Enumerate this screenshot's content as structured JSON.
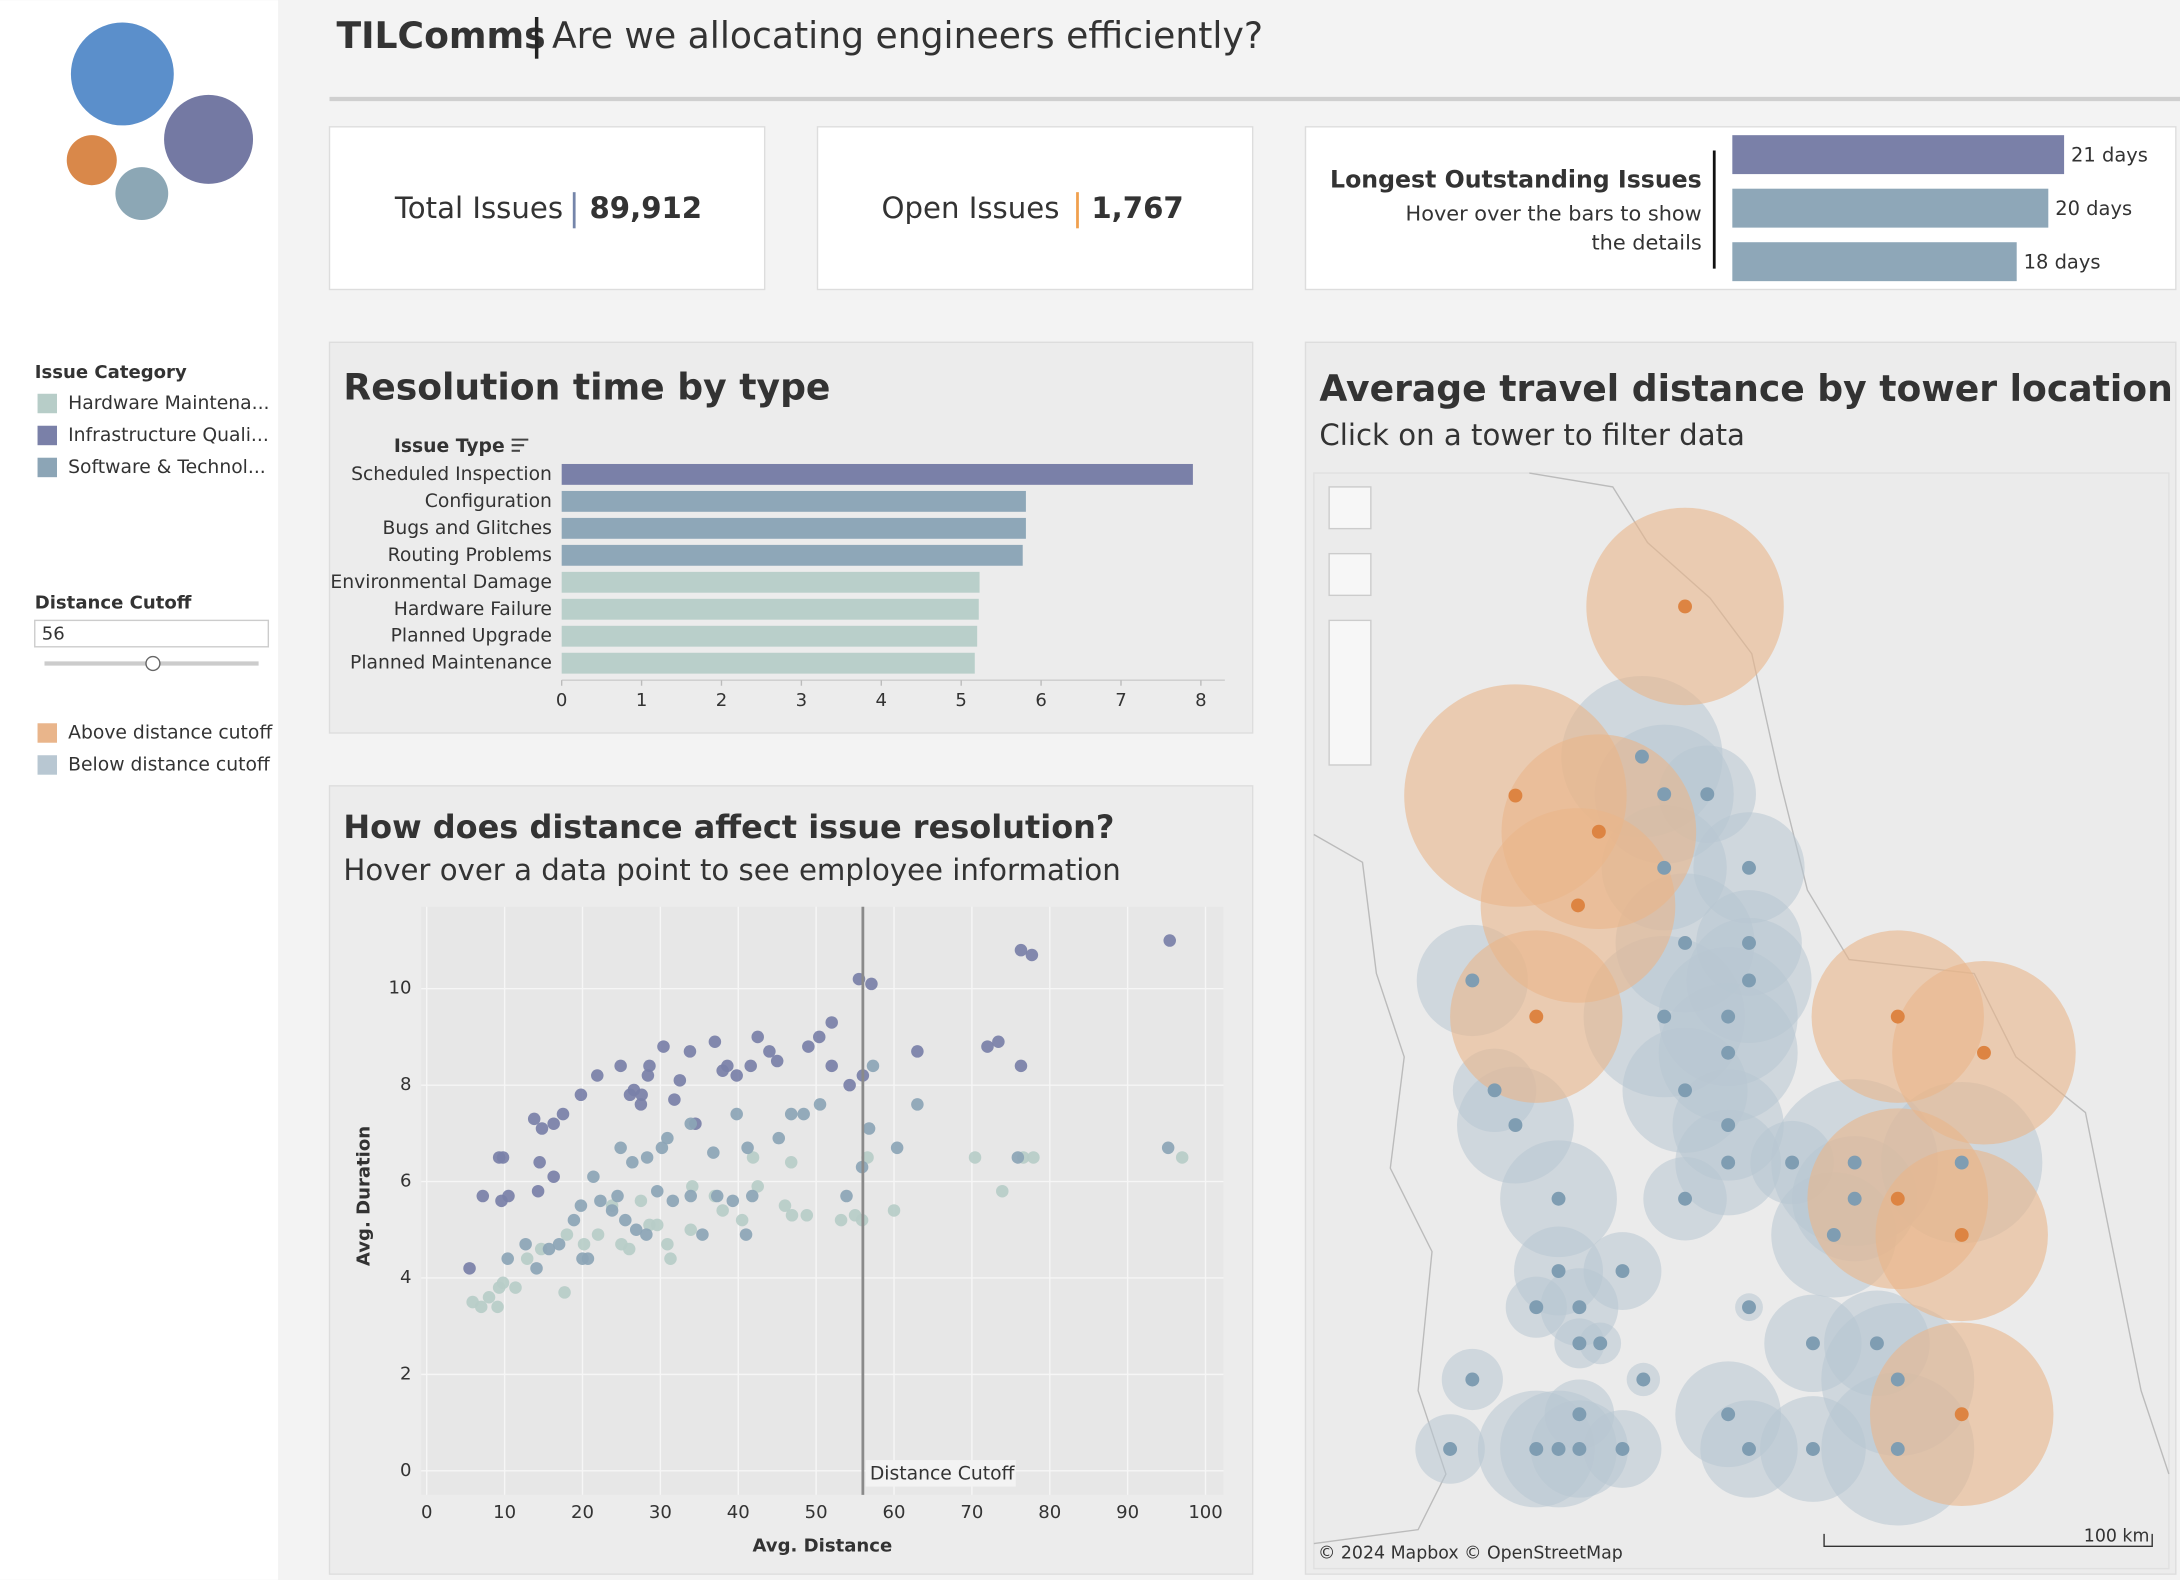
{
  "header": {
    "brand": "TILComms",
    "title": "Are we allocating engineers efficiently?"
  },
  "sidebar": {
    "category_title": "Issue Category",
    "cutoff_label": "Distance Cutoff",
    "cutoff_legend": [
      {
        "name": "Above distance cutoff",
        "color": "#e9b58b"
      },
      {
        "name": "Below distance cutoff",
        "color": "#b8c7d2"
      }
    ]
  },
  "kpis": [
    {
      "label": "Total Issues",
      "value": "89,912",
      "color": "#7585aa"
    },
    {
      "label": "Open Issues",
      "value": "1,767",
      "color": "#f0a04e"
    }
  ],
  "chart_data": [
    {
      "type": "hbar",
      "title": "Longest Outstanding Issues",
      "subtitle": "Hover over the bars to show the details",
      "values": [
        21,
        20,
        18
      ],
      "value_labels": [
        "21 days",
        "20 days",
        "18 days"
      ],
      "colors": [
        "#7a80a8",
        "#8ea7b8",
        "#8ea7b8"
      ],
      "xlim": [
        0,
        22
      ]
    },
    {
      "type": "bar",
      "title": "Resolution time by type",
      "category_label": "Issue Type",
      "categories": [
        "Scheduled Inspection",
        "Configuration",
        "Bugs and Glitches",
        "Routing Problems",
        "Environmental Damage",
        "Hardware Failure",
        "Planned Upgrade",
        "Planned Maintenance"
      ],
      "values": [
        7.9,
        5.81,
        5.81,
        5.77,
        5.23,
        5.22,
        5.2,
        5.17
      ],
      "colors": [
        "#7a80a8",
        "#8ea7b8",
        "#8ea7b8",
        "#8ea7b8",
        "#b9cfca",
        "#b9cfca",
        "#b9cfca",
        "#b9cfca"
      ],
      "xlim": [
        0,
        8.3
      ],
      "xticks": [
        0,
        1,
        2,
        3,
        4,
        5,
        6,
        7,
        8
      ]
    },
    {
      "type": "scatter",
      "title": "How does distance affect issue resolution?",
      "subtitle": "Hover over a data point to see employee information",
      "x_label": "Avg. Distance",
      "y_label": "Avg. Duration",
      "cutoff": 56,
      "cutoff_label": "Distance Cutoff",
      "grid": true,
      "xlim": [
        -0.7,
        102.3
      ],
      "ylim": [
        -0.5,
        11.7
      ],
      "xticks": [
        0,
        10,
        20,
        30,
        40,
        50,
        60,
        70,
        80,
        90,
        100
      ],
      "yticks": [
        0,
        2,
        4,
        6,
        8,
        10
      ],
      "series": [
        {
          "name": "Hardware Maintena...",
          "color": "#b7cdc8",
          "x": [
            5.9,
            7,
            8,
            9.1,
            9.3,
            9.8,
            11.4,
            12.9,
            14.7,
            17.7,
            18,
            20.2,
            22,
            23.8,
            25,
            26,
            27.5,
            28.6,
            29.6,
            30.9,
            31.3,
            33.9,
            34.1,
            37,
            38,
            40.5,
            42.5,
            41.9,
            46,
            46.9,
            48.8,
            53.2,
            55,
            55.9,
            56.6,
            60,
            70.4,
            73.9,
            76.6,
            77.9,
            97,
            46.8
          ],
          "values": [
            3.5,
            3.4,
            3.6,
            3.4,
            3.8,
            3.9,
            3.8,
            4.4,
            4.6,
            3.7,
            4.9,
            4.7,
            4.9,
            5.5,
            4.7,
            4.6,
            5.6,
            5.1,
            5.1,
            4.7,
            4.4,
            5.0,
            5.9,
            5.7,
            5.4,
            5.2,
            5.9,
            6.5,
            5.5,
            5.3,
            5.3,
            5.2,
            5.3,
            5.2,
            6.5,
            5.4,
            6.5,
            5.8,
            6.5,
            6.5,
            6.5,
            6.4
          ]
        },
        {
          "name": "Infrastructure Quali...",
          "color": "#7a80a8",
          "x": [
            5.5,
            7.2,
            9.8,
            9.3,
            9.6,
            10.5,
            13.8,
            14.8,
            16.3,
            17.5,
            14.5,
            14.3,
            16.3,
            19.8,
            21.9,
            24.9,
            28.6,
            26.6,
            26.1,
            27.6,
            27.5,
            28.4,
            30.4,
            33.8,
            37,
            31.8,
            32.5,
            34.5,
            38,
            38.6,
            39.8,
            41.6,
            42.5,
            44,
            45,
            49,
            50.4,
            52,
            52,
            54.3,
            55.5,
            57.1,
            56,
            63,
            72,
            73.4,
            76.3,
            76.3,
            77.7,
            95.4
          ],
          "values": [
            4.2,
            5.7,
            6.5,
            6.5,
            5.6,
            5.7,
            7.3,
            7.1,
            7.2,
            7.4,
            6.4,
            5.8,
            6.1,
            7.8,
            8.2,
            8.4,
            8.4,
            7.9,
            7.8,
            7.8,
            7.6,
            8.2,
            8.8,
            8.7,
            8.9,
            7.7,
            8.1,
            7.2,
            8.3,
            8.4,
            8.2,
            8.4,
            9.0,
            8.7,
            8.5,
            8.8,
            9.0,
            9.3,
            8.4,
            8.0,
            10.2,
            10.1,
            8.2,
            8.7,
            8.8,
            8.9,
            8.4,
            10.8,
            10.7,
            11.0
          ]
        },
        {
          "name": "Software & Technol...",
          "color": "#8ca5b6",
          "x": [
            10.4,
            12.7,
            14.1,
            15.7,
            17,
            18.9,
            19.8,
            20.7,
            22.3,
            23.8,
            24.5,
            25.5,
            26.9,
            28.2,
            29.6,
            31.6,
            33.9,
            35.4,
            37.3,
            39.3,
            41,
            41.8,
            24.9,
            26.4,
            28.3,
            30.2,
            30.9,
            33.9,
            36.8,
            39.8,
            41.2,
            45.2,
            46.8,
            48.4,
            50.5,
            53.9,
            55.9,
            56.8,
            57.3,
            60.4,
            63,
            75.9,
            95.2,
            21.4,
            20
          ],
          "values": [
            4.4,
            4.7,
            4.2,
            4.6,
            4.7,
            5.2,
            5.5,
            4.4,
            5.6,
            5.4,
            5.7,
            5.2,
            5.0,
            4.9,
            5.8,
            5.6,
            5.7,
            4.9,
            5.7,
            5.6,
            4.9,
            5.7,
            6.7,
            6.4,
            6.5,
            6.7,
            6.9,
            7.2,
            6.6,
            7.4,
            6.7,
            6.9,
            7.4,
            7.4,
            7.6,
            5.7,
            6.3,
            7.1,
            8.4,
            6.7,
            7.6,
            6.5,
            6.7,
            6.1,
            4.4
          ]
        }
      ]
    },
    {
      "type": "map",
      "title": "Average travel distance by tower location",
      "subtitle": "Click on a tower to filter data",
      "attribution": "© 2024 Mapbox © OpenStreetMap",
      "scale_label": "100 km"
    }
  ]
}
